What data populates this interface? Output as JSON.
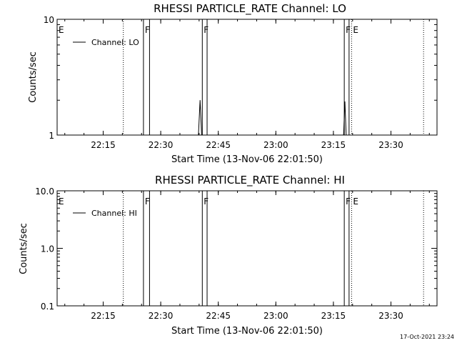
{
  "chart_data": [
    {
      "type": "line",
      "title": "RHESSI PARTICLE_RATE Channel: LO",
      "xlabel": "Start Time (13-Nov-06 22:01:50)",
      "ylabel": "Counts/sec",
      "yscale": "log",
      "ylim": [
        1,
        10
      ],
      "y_ticks": [
        1,
        10
      ],
      "y_tick_labels": [
        "1",
        "10"
      ],
      "xlim": [
        "22:03:00",
        "23:42:00"
      ],
      "x_ticks": [
        "22:15",
        "22:30",
        "22:45",
        "23:00",
        "23:15",
        "23:30"
      ],
      "legend": {
        "position": "top-left",
        "entries": [
          "Channel: LO"
        ]
      },
      "series": [
        {
          "name": "Channel: LO",
          "x": [
            "22:39:50",
            "22:40:15",
            "22:40:40",
            "23:17:40",
            "23:18:00",
            "23:18:20"
          ],
          "y": [
            1,
            2.0,
            1,
            1,
            1.95,
            1
          ]
        }
      ],
      "solid_markers": [
        "22:25:30",
        "22:27:05",
        "22:40:50",
        "22:42:05",
        "23:17:50",
        "23:19:05"
      ],
      "dotted_markers": [
        "22:20:15",
        "23:19:45",
        "23:38:30"
      ],
      "annotations": [
        {
          "label": "E",
          "x": "22:03:00"
        },
        {
          "label": "F",
          "x": "22:25:30"
        },
        {
          "label": "F",
          "x": "22:40:50"
        },
        {
          "label": "F",
          "x": "23:17:50"
        },
        {
          "label": "E",
          "x": "23:19:45"
        }
      ]
    },
    {
      "type": "line",
      "title": "RHESSI PARTICLE_RATE Channel: HI",
      "xlabel": "Start Time (13-Nov-06 22:01:50)",
      "ylabel": "Counts/sec",
      "yscale": "log",
      "ylim": [
        0.1,
        10
      ],
      "y_ticks": [
        0.1,
        1,
        10
      ],
      "y_tick_labels": [
        "0.1",
        "1.0",
        "10.0"
      ],
      "xlim": [
        "22:03:00",
        "23:42:00"
      ],
      "x_ticks": [
        "22:15",
        "22:30",
        "22:45",
        "23:00",
        "23:15",
        "23:30"
      ],
      "legend": {
        "position": "top-left",
        "entries": [
          "Channel: HI"
        ]
      },
      "series": [
        {
          "name": "Channel: HI",
          "x": [],
          "y": []
        }
      ],
      "solid_markers": [
        "22:25:30",
        "22:27:05",
        "22:40:50",
        "22:42:05",
        "23:17:50",
        "23:19:05"
      ],
      "dotted_markers": [
        "22:20:15",
        "23:19:45",
        "23:38:30"
      ],
      "annotations": [
        {
          "label": "E",
          "x": "22:03:00"
        },
        {
          "label": "F",
          "x": "22:25:30"
        },
        {
          "label": "F",
          "x": "22:40:50"
        },
        {
          "label": "F",
          "x": "23:17:50"
        },
        {
          "label": "E",
          "x": "23:19:45"
        }
      ]
    }
  ],
  "footer": {
    "timestamp": "17-Oct-2021 23:24"
  },
  "colors": {
    "background": "#ffffff",
    "foreground": "#000000"
  }
}
